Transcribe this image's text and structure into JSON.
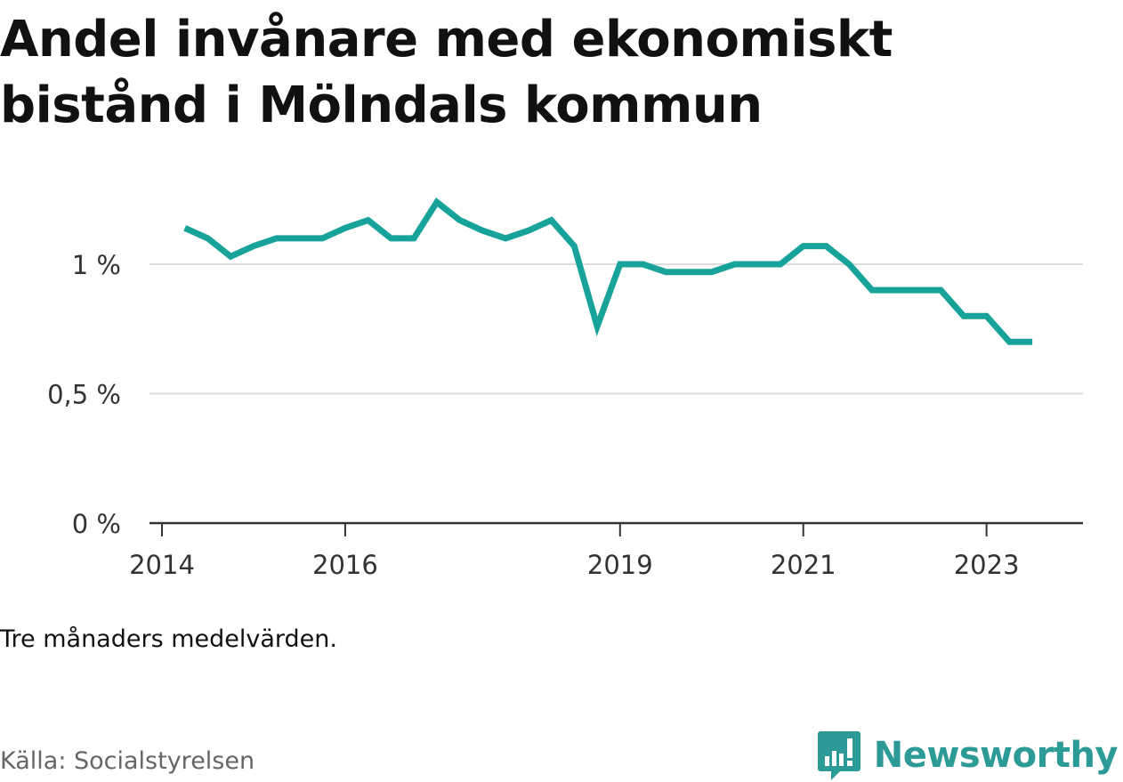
{
  "title": "Andel invånare med ekonomiskt bistånd i Mölndals kommun",
  "note": "Tre månaders medelvärden.",
  "source": "Källa: Socialstyrelsen",
  "brand": {
    "name": "Newsworthy",
    "icon": "newsworthy-logo-icon",
    "color": "#2c9a96"
  },
  "colors": {
    "line": "#18a39a",
    "grid": "#dddddd",
    "axis": "#333333"
  },
  "chart_data": {
    "type": "line",
    "title": "Andel invånare med ekonomiskt bistånd i Mölndals kommun",
    "xlabel": "",
    "ylabel": "",
    "ylim": [
      0,
      1.3
    ],
    "y_ticks": [
      {
        "value": 0,
        "label": "0 %"
      },
      {
        "value": 0.5,
        "label": "0,5 %"
      },
      {
        "value": 1,
        "label": "1 %"
      }
    ],
    "x_ticks": [
      {
        "value": "2014-01",
        "label": "2014"
      },
      {
        "value": "2016-01",
        "label": "2016"
      },
      {
        "value": "2019-01",
        "label": "2019"
      },
      {
        "value": "2021-01",
        "label": "2021"
      },
      {
        "value": "2023-01",
        "label": "2023"
      }
    ],
    "grid": true,
    "series": [
      {
        "x": [
          "2014-04",
          "2014-07",
          "2014-10",
          "2015-01",
          "2015-04",
          "2015-07",
          "2015-10",
          "2016-01",
          "2016-04",
          "2016-07",
          "2016-10",
          "2017-01",
          "2017-04",
          "2017-07",
          "2017-10",
          "2018-01",
          "2018-04",
          "2018-07",
          "2018-10",
          "2019-01",
          "2019-04",
          "2019-07",
          "2019-10",
          "2020-01",
          "2020-04",
          "2020-07",
          "2020-10",
          "2021-01",
          "2021-04",
          "2021-07",
          "2021-10",
          "2022-01",
          "2022-04",
          "2022-07",
          "2022-10",
          "2023-01",
          "2023-04",
          "2023-07"
        ],
        "values": [
          1.14,
          1.1,
          1.03,
          1.07,
          1.1,
          1.1,
          1.1,
          1.14,
          1.17,
          1.1,
          1.1,
          1.24,
          1.17,
          1.13,
          1.1,
          1.13,
          1.17,
          1.07,
          0.76,
          1.0,
          1.0,
          0.97,
          0.97,
          0.97,
          1.0,
          1.0,
          1.0,
          1.07,
          1.07,
          1.0,
          0.9,
          0.9,
          0.9,
          0.9,
          0.8,
          0.8,
          0.7,
          0.7
        ]
      }
    ]
  }
}
